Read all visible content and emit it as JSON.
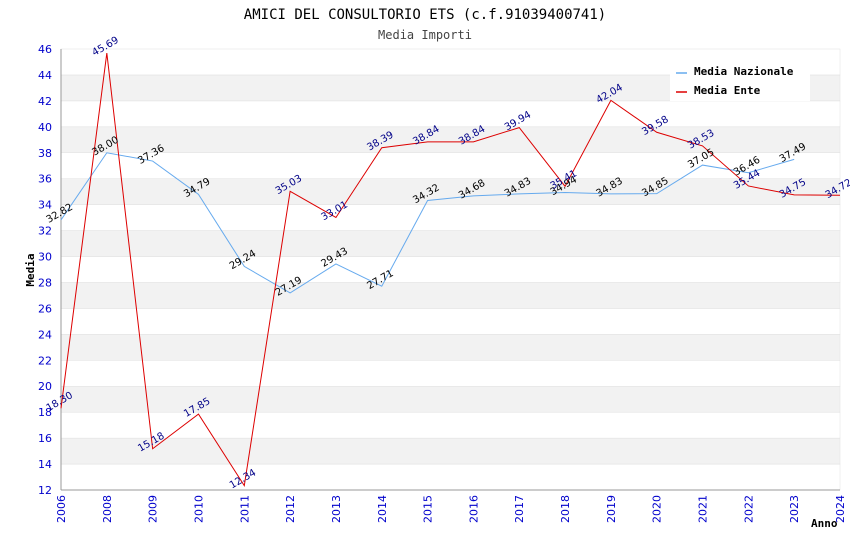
{
  "chart_data": {
    "type": "line",
    "title": "AMICI DEL CONSULTORIO ETS (c.f.91039400741)",
    "subtitle": "Media Importi",
    "xlabel": "Anno",
    "ylabel": "Media",
    "x": [
      "2006",
      "2008",
      "2009",
      "2010",
      "2011",
      "2012",
      "2013",
      "2014",
      "2015",
      "2016",
      "2017",
      "2018",
      "2019",
      "2020",
      "2021",
      "2022",
      "2023",
      "2024"
    ],
    "ylim": [
      12,
      46
    ],
    "yticks": [
      12,
      14,
      16,
      18,
      20,
      22,
      24,
      26,
      28,
      30,
      32,
      34,
      36,
      38,
      40,
      42,
      44,
      46
    ],
    "grid": "horizontal alternating bands",
    "legend_position": "top-right",
    "series": [
      {
        "name": "Media Nazionale",
        "color": "#66aaee",
        "label_color": "#000000",
        "values": [
          32.82,
          38.0,
          37.36,
          34.79,
          29.24,
          27.19,
          29.43,
          27.71,
          34.32,
          34.68,
          34.83,
          34.94,
          34.83,
          34.85,
          37.05,
          36.46,
          37.49,
          null
        ],
        "labels": [
          "32.82",
          "38.00",
          "37.36",
          "34.79",
          "29.24",
          "27.19",
          "29.43",
          "27.71",
          "34.32",
          "34.68",
          "34.83",
          "34.94",
          "34.83",
          "34.85",
          "37.05",
          "36.46",
          "37.49",
          ""
        ]
      },
      {
        "name": "Media Ente",
        "color": "#dd0000",
        "label_color": "#000088",
        "values": [
          18.3,
          45.69,
          15.18,
          17.85,
          12.34,
          35.03,
          33.01,
          38.39,
          38.84,
          38.84,
          39.94,
          35.41,
          42.04,
          39.58,
          38.53,
          35.44,
          34.75,
          34.72
        ],
        "labels": [
          "18.30",
          "45.69",
          "15.18",
          "17.85",
          "12.34",
          "35.03",
          "33.01",
          "38.39",
          "38.84",
          "38.84",
          "39.94",
          "35.41",
          "42.04",
          "39.58",
          "38.53",
          "35.44",
          "34.75",
          "34.72"
        ]
      }
    ]
  }
}
